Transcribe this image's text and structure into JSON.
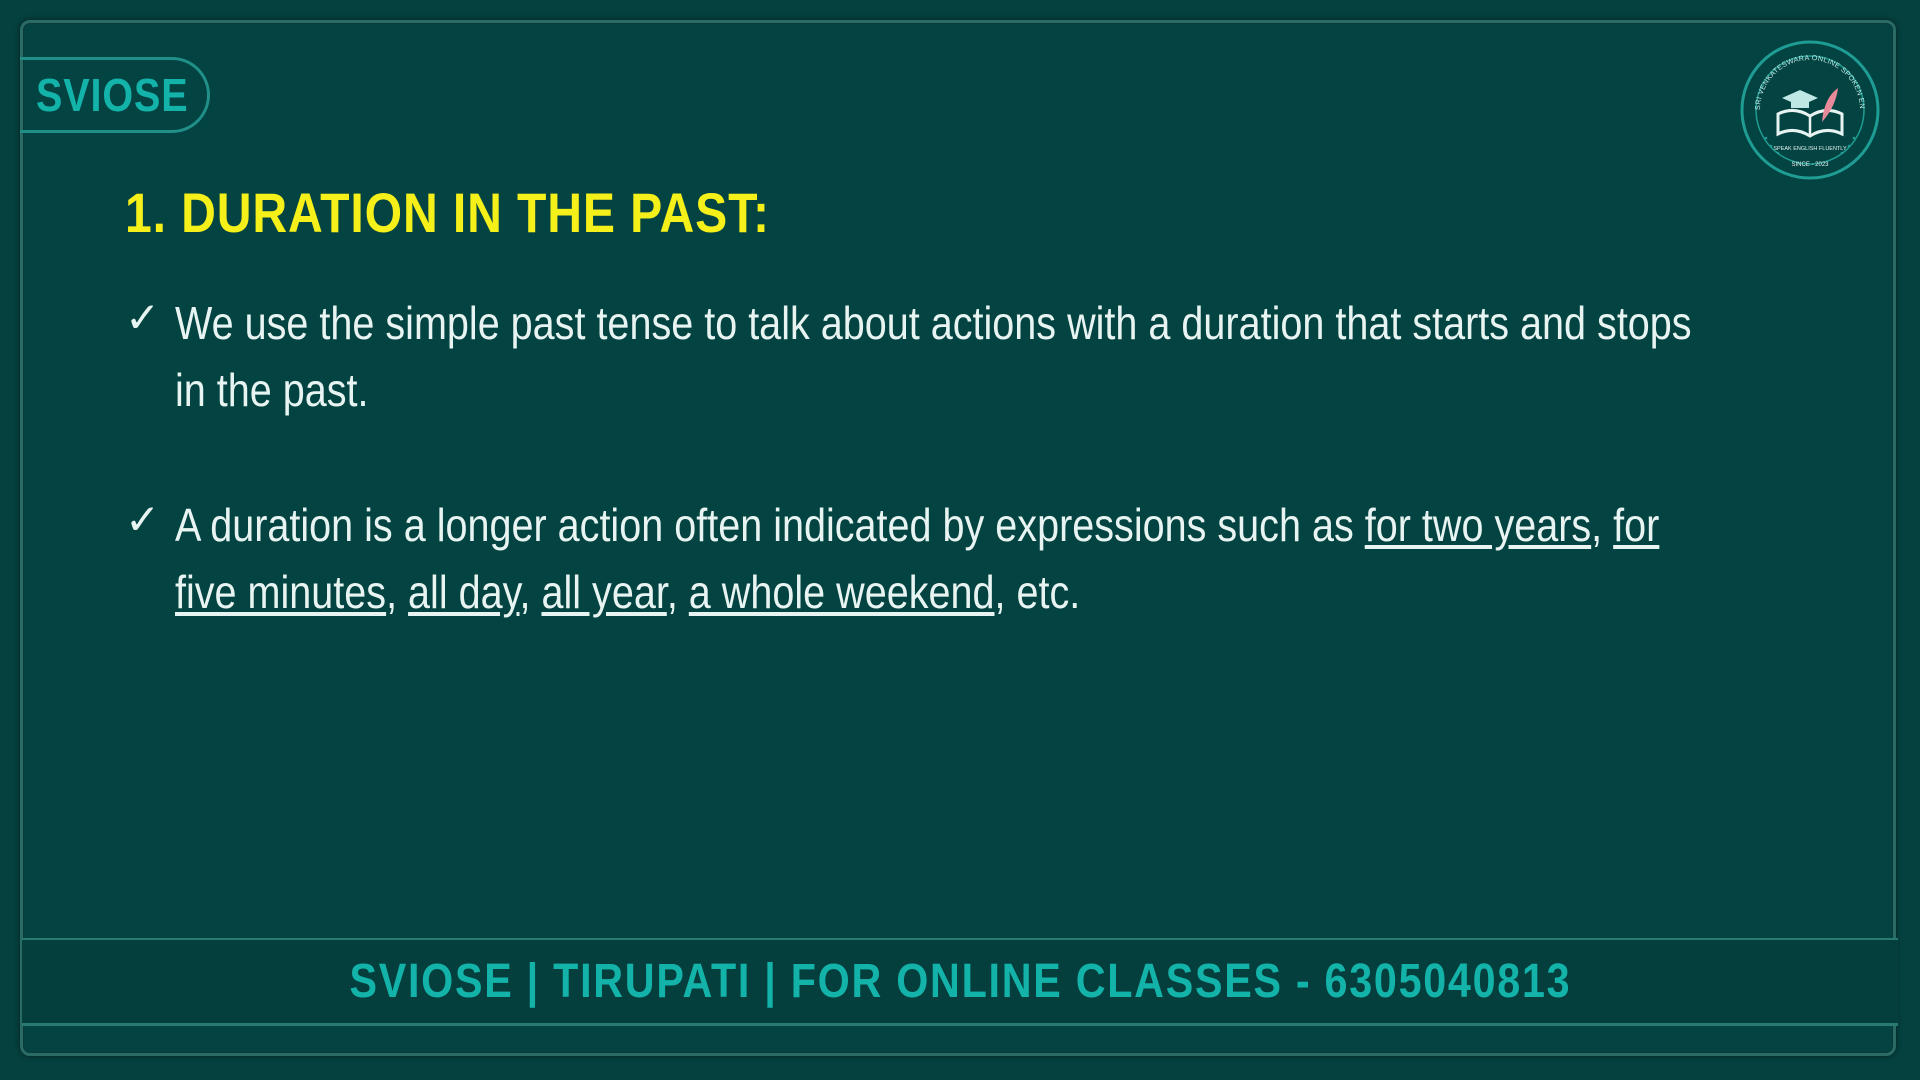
{
  "brand": {
    "label": "SVIOSE"
  },
  "logo": {
    "icon": "school-logo-icon",
    "ring_text": "SRI VENKATESWARA ONLINE SPOKEN ENGLISH SCHOOL",
    "tagline": "SPEAK ENGLISH FLUENTLY",
    "since": "SINCE - 2023"
  },
  "slide": {
    "title": "1. DURATION IN THE PAST:",
    "bullets": [
      {
        "check": "✓",
        "text": "We use the simple past tense to talk about actions with a duration that starts and stops in the past."
      },
      {
        "check": "✓",
        "intro": "A duration is a longer action often indicated by expressions such as ",
        "examples": [
          "for two years",
          "for five minutes",
          "all day",
          "all year",
          "a whole weekend"
        ],
        "separator": ", ",
        "ending": ", etc."
      }
    ]
  },
  "footer": {
    "text": "SVIOSE | TIRUPATI | FOR ONLINE CLASSES - 6305040813"
  },
  "colors": {
    "background": "#034341",
    "title": "#f5ef1a",
    "body_text": "#e8f4f2",
    "accent": "#13b3aa"
  }
}
